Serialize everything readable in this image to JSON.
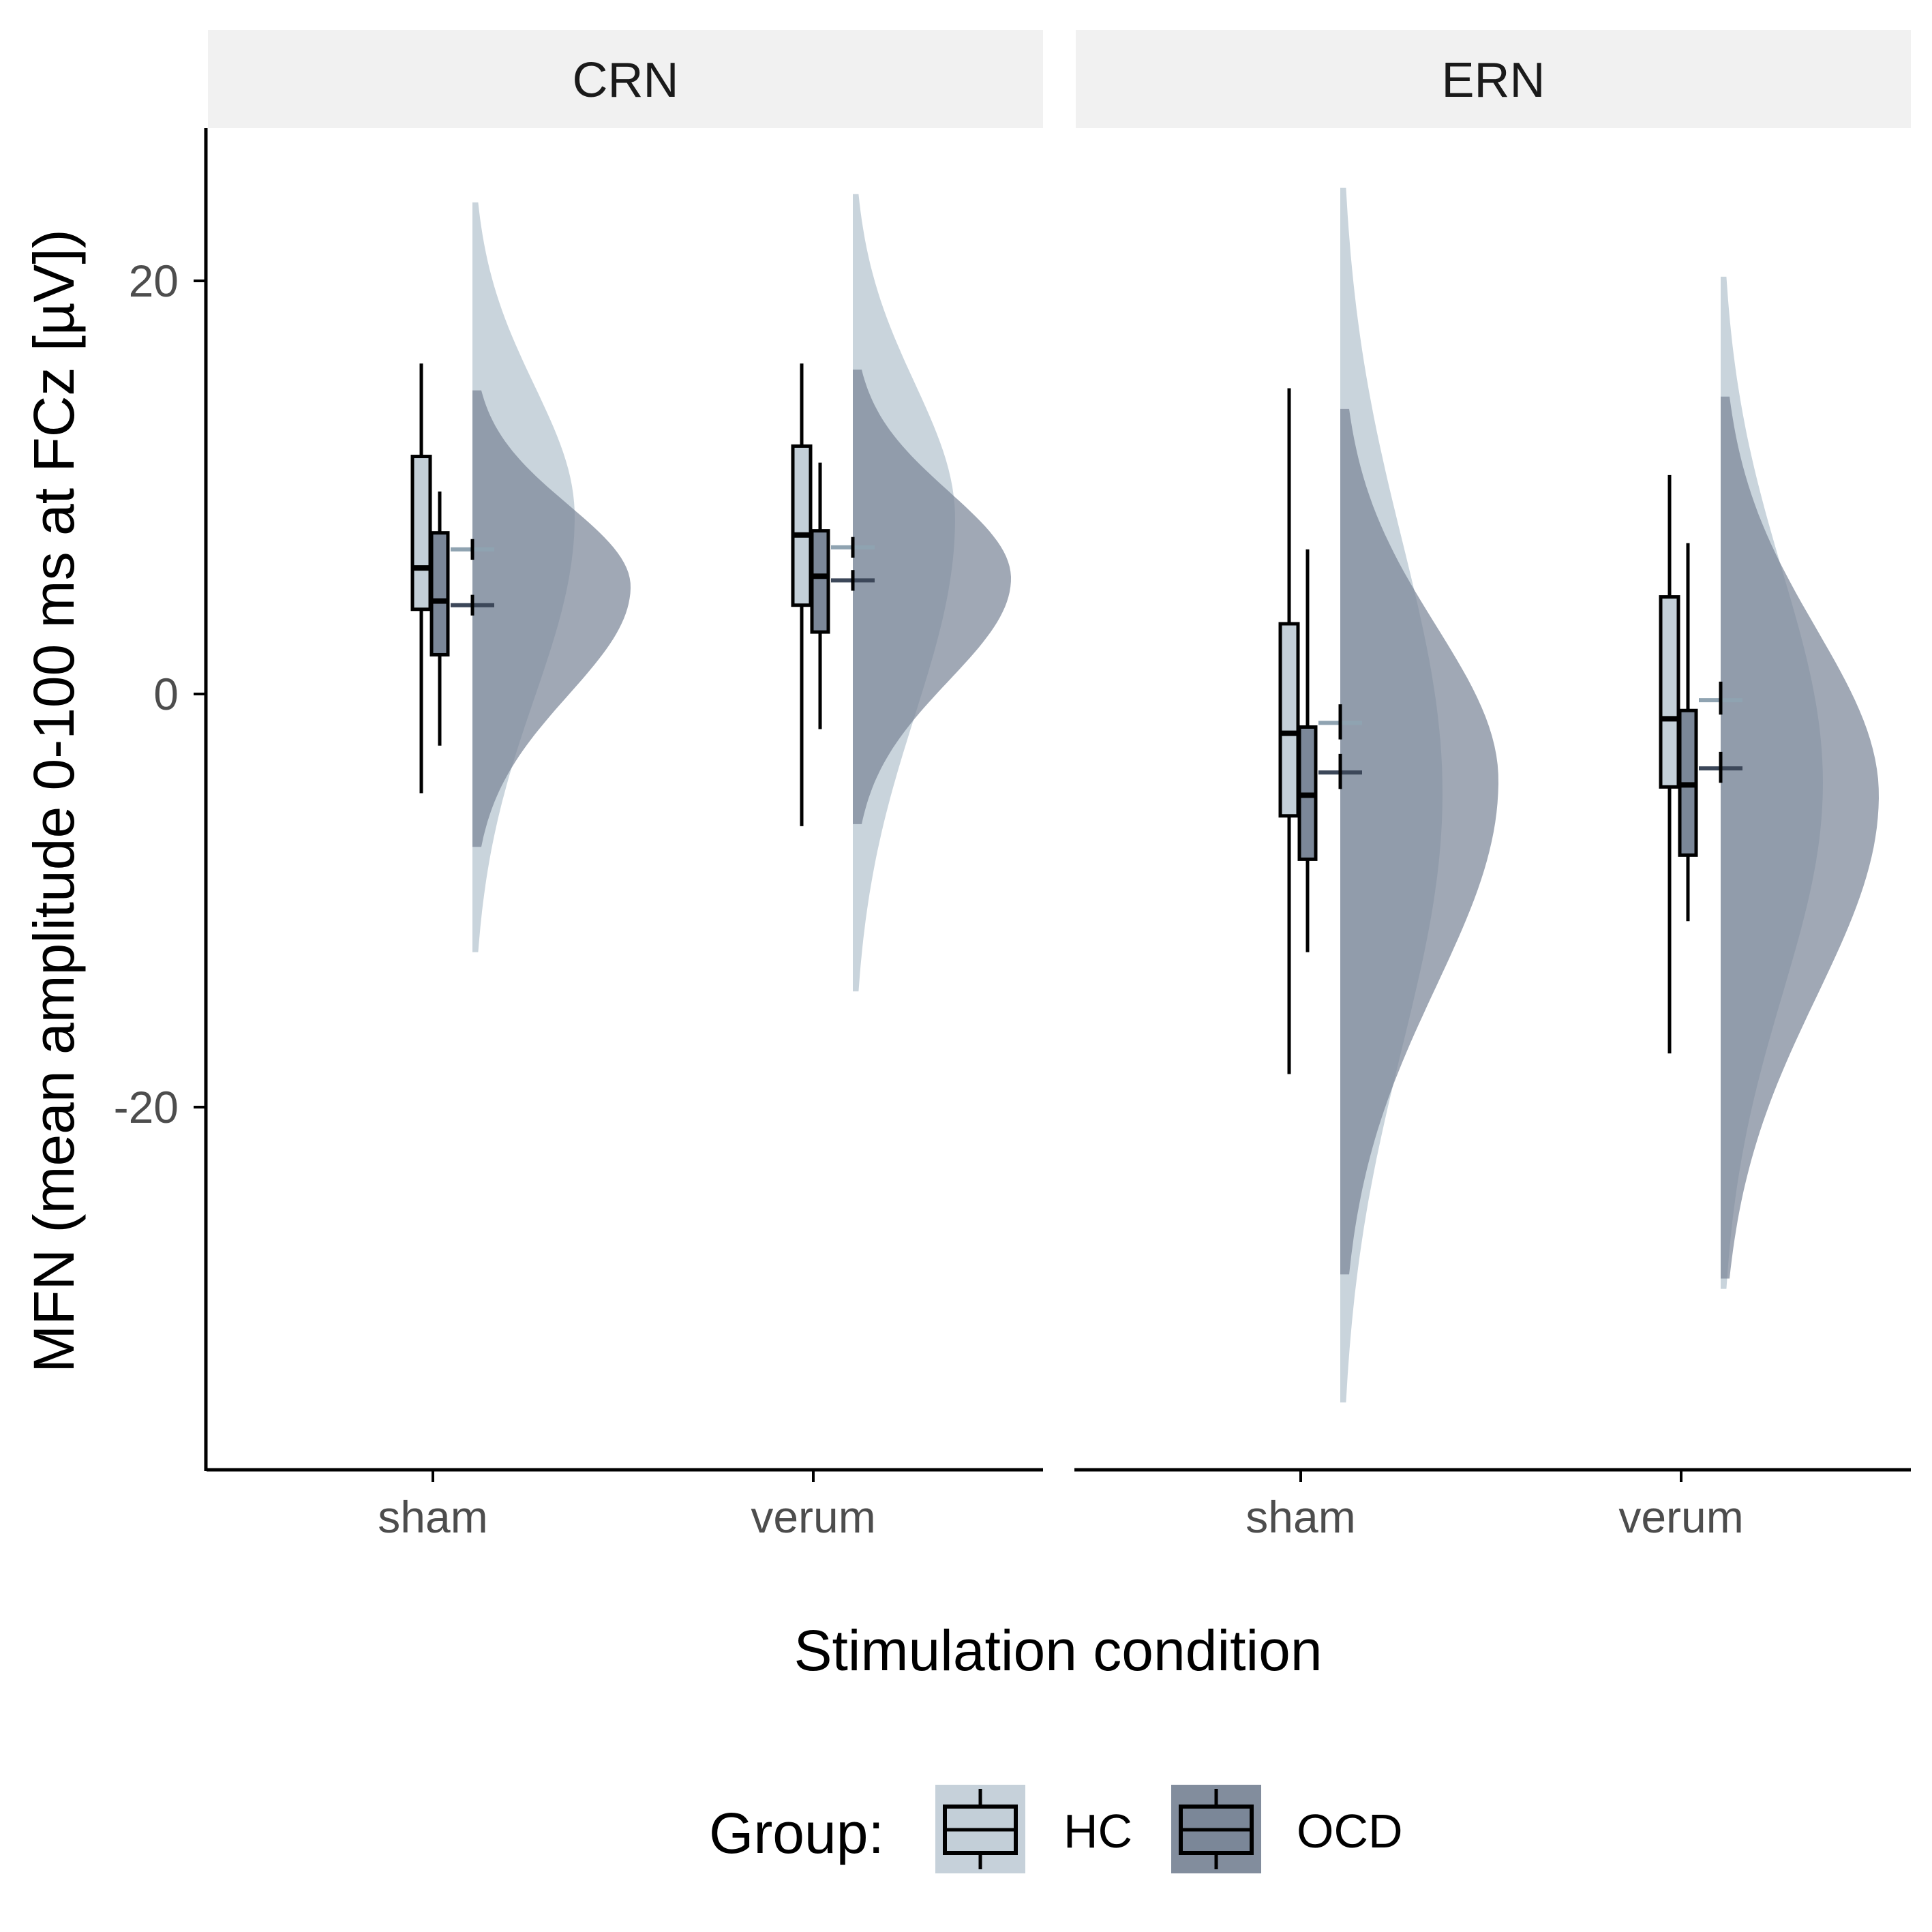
{
  "chart_data": {
    "type": "raincloud",
    "ylabel": "MFN (mean amplitude 0-100 ms at FCz [µV])",
    "xlabel": "Stimulation condition",
    "ylim": [
      -37.5,
      27.5
    ],
    "yticks": [
      20,
      0,
      -20
    ],
    "ytick_labels": [
      "20",
      "0",
      "-20"
    ],
    "categories": [
      "sham",
      "verum"
    ],
    "legend": {
      "title": "Group:",
      "position": "bottom",
      "entries": [
        "HC",
        "OCD"
      ]
    },
    "colors": {
      "HC": "#c3cfd8",
      "HC_mean": "#8fa3b1",
      "OCD": "#7b8798",
      "OCD_mean": "#3c4759"
    },
    "panels": [
      {
        "title": "CRN",
        "groups": [
          {
            "condition": "sham",
            "group": "HC",
            "whisker_low": -4.8,
            "q1": 4.1,
            "median": 6.1,
            "q3": 11.5,
            "whisker_high": 16.0,
            "mean": 7.0,
            "mean_ci": [
              6.5,
              7.5
            ],
            "density_range": [
              -12.5,
              23.8
            ],
            "density_peak": 8.6
          },
          {
            "condition": "sham",
            "group": "OCD",
            "whisker_low": -2.5,
            "q1": 1.9,
            "median": 4.5,
            "q3": 7.8,
            "whisker_high": 9.8,
            "mean": 4.3,
            "mean_ci": [
              3.8,
              4.8
            ],
            "density_range": [
              -7.4,
              14.7
            ],
            "density_peak": 5.2
          },
          {
            "condition": "verum",
            "group": "HC",
            "whisker_low": -6.4,
            "q1": 4.3,
            "median": 7.7,
            "q3": 12.0,
            "whisker_high": 16.0,
            "mean": 7.1,
            "mean_ci": [
              6.6,
              7.6
            ],
            "density_range": [
              -14.4,
              24.2
            ],
            "density_peak": 8.5
          },
          {
            "condition": "verum",
            "group": "OCD",
            "whisker_low": -1.7,
            "q1": 3.0,
            "median": 5.7,
            "q3": 7.9,
            "whisker_high": 11.2,
            "mean": 5.5,
            "mean_ci": [
              5.0,
              6.0
            ],
            "density_range": [
              -6.3,
              15.7
            ],
            "density_peak": 5.6
          }
        ]
      },
      {
        "title": "ERN",
        "groups": [
          {
            "condition": "sham",
            "group": "HC",
            "whisker_low": -18.4,
            "q1": -5.9,
            "median": -1.9,
            "q3": 3.4,
            "whisker_high": 14.8,
            "mean": -1.4,
            "mean_ci": [
              -2.2,
              -0.5
            ],
            "density_range": [
              -34.3,
              24.5
            ],
            "density_peak": -4.8
          },
          {
            "condition": "sham",
            "group": "OCD",
            "whisker_low": -12.5,
            "q1": -8.0,
            "median": -4.9,
            "q3": -1.6,
            "whisker_high": 7.0,
            "mean": -3.8,
            "mean_ci": [
              -4.6,
              -2.9
            ],
            "density_range": [
              -28.1,
              13.8
            ],
            "density_peak": -4.2
          },
          {
            "condition": "verum",
            "group": "HC",
            "whisker_low": -17.4,
            "q1": -4.5,
            "median": -1.2,
            "q3": 4.7,
            "whisker_high": 10.6,
            "mean": -0.3,
            "mean_ci": [
              -1.0,
              0.6
            ],
            "density_range": [
              -28.8,
              20.2
            ],
            "density_peak": -4.3
          },
          {
            "condition": "verum",
            "group": "OCD",
            "whisker_low": -11.0,
            "q1": -7.8,
            "median": -4.4,
            "q3": -0.8,
            "whisker_high": 7.3,
            "mean": -3.6,
            "mean_ci": [
              -4.3,
              -2.8
            ],
            "density_range": [
              -28.3,
              14.4
            ],
            "density_peak": -4.9
          }
        ]
      }
    ]
  }
}
